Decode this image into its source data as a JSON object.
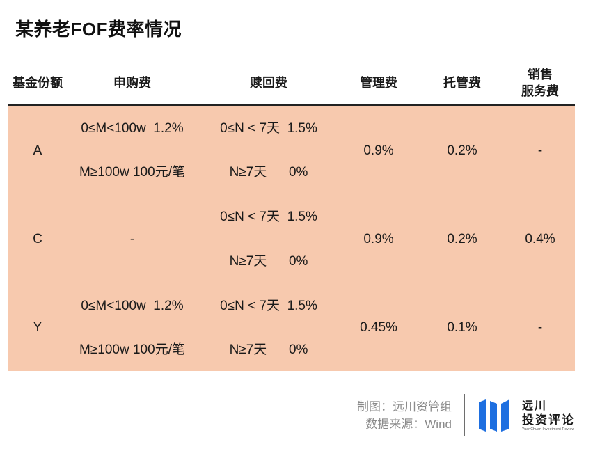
{
  "title": "某养老FOF费率情况",
  "headers": {
    "share_class": "基金份额",
    "subscription_fee": "申购费",
    "redemption_fee": "赎回费",
    "management_fee": "管理费",
    "custody_fee": "托管费",
    "sales_fee_line1": "销售",
    "sales_fee_line2": "服务费"
  },
  "rows": [
    {
      "share_class": "A",
      "subscription": [
        "0≤M<100w  1.2%",
        "M≥100w 100元/笔"
      ],
      "redemption": [
        "0≤N < 7天  1.5%",
        "N≥7天      0%"
      ],
      "management": "0.9%",
      "custody": "0.2%",
      "sales_service": "-"
    },
    {
      "share_class": "C",
      "subscription": [
        "-"
      ],
      "redemption": [
        "0≤N < 7天  1.5%",
        "N≥7天      0%"
      ],
      "management": "0.9%",
      "custody": "0.2%",
      "sales_service": "0.4%"
    },
    {
      "share_class": "Y",
      "subscription": [
        "0≤M<100w  1.2%",
        "M≥100w 100元/笔"
      ],
      "redemption": [
        "0≤N < 7天  1.5%",
        "N≥7天      0%"
      ],
      "management": "0.45%",
      "custody": "0.1%",
      "sales_service": "-"
    }
  ],
  "footer": {
    "made_by": "制图：远川资管组",
    "source": "数据来源：Wind"
  },
  "brand": {
    "name_line1": "远川",
    "name_line2": "投资评论",
    "subtitle": "YuanChuan Investment Review",
    "logo_color": "#1e6fe0"
  },
  "colors": {
    "table_background": "#f7c9ae"
  }
}
